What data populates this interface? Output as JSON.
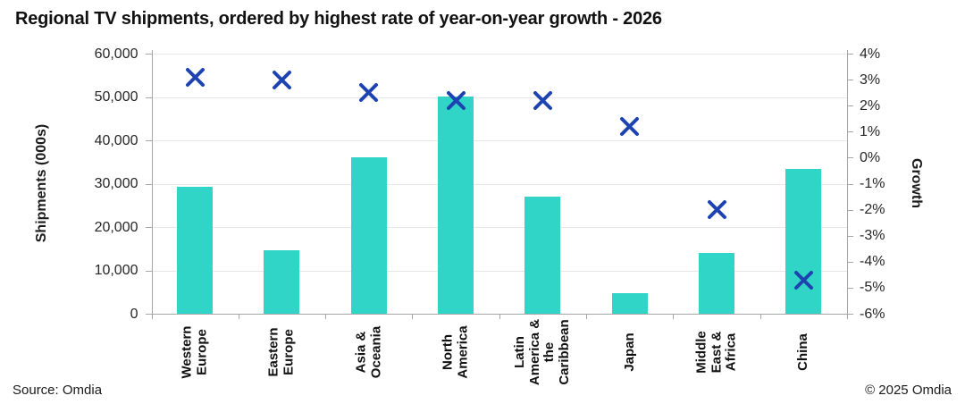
{
  "title": "Regional TV shipments, ordered by highest rate of year-on-year growth - 2026",
  "footer": {
    "source": "Source: Omdia",
    "copyright": "© 2025 Omdia"
  },
  "colors": {
    "bar": "#30d5c8",
    "marker": "#1d43b0",
    "grid": "#e7e7e7",
    "axis": "#a6a6a6",
    "text": "#1a1a1a"
  },
  "chart_data": {
    "type": "bar",
    "subtype": "bar-with-scatter-x-markers",
    "title": "Regional TV shipments, ordered by highest rate of year-on-year growth - 2026",
    "categories": [
      "Western\nEurope",
      "Eastern\nEurope",
      "Asia &\nOceania",
      "North\nAmerica",
      "Latin\nAmerica &\nthe\nCaribbean",
      "Japan",
      "Middle\nEast &\nAfrica",
      "China"
    ],
    "series": [
      {
        "name": "Shipments (000s)",
        "type": "bar",
        "axis": "left",
        "color": "#30d5c8",
        "values": [
          29300,
          14700,
          36100,
          50200,
          27100,
          4700,
          14100,
          33300
        ]
      },
      {
        "name": "Growth",
        "type": "scatter",
        "marker": "x",
        "axis": "right",
        "color": "#1d43b0",
        "values": [
          3.1,
          3.0,
          2.5,
          2.2,
          2.2,
          1.2,
          -2.0,
          -4.7
        ]
      }
    ],
    "left_axis": {
      "label": "Shipments (000s)",
      "min": 0,
      "max": 60000,
      "tick_step": 10000,
      "tick_labels": [
        "60,000",
        "50,000",
        "40,000",
        "30,000",
        "20,000",
        "10,000",
        "0"
      ]
    },
    "right_axis": {
      "label": "Growth",
      "min": -6,
      "max": 4,
      "tick_step": 1,
      "tick_labels": [
        "4%",
        "3%",
        "2%",
        "1%",
        "0%",
        "-1%",
        "-2%",
        "-3%",
        "-4%",
        "-5%",
        "-6%"
      ]
    },
    "grid": true,
    "legend": "none"
  }
}
